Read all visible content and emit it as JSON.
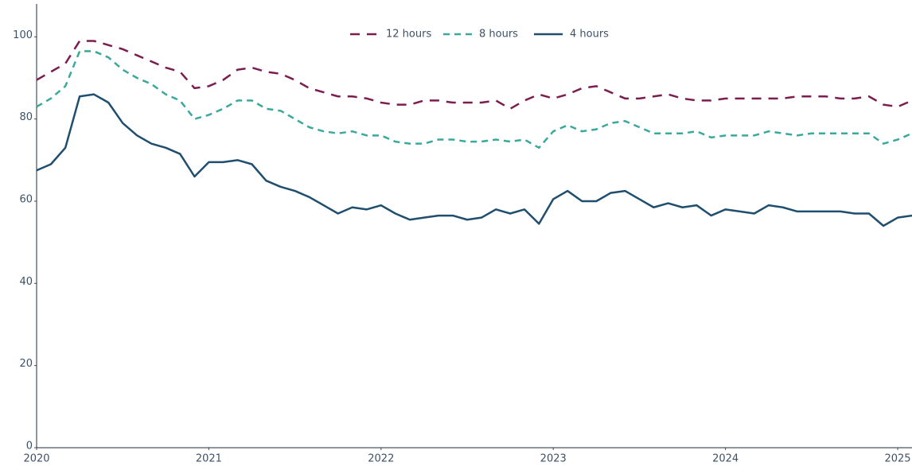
{
  "chart_data": {
    "type": "line",
    "x": [
      2020,
      2020.083,
      2020.167,
      2020.25,
      2020.333,
      2020.417,
      2020.5,
      2020.583,
      2020.667,
      2020.75,
      2020.833,
      2020.917,
      2021,
      2021.083,
      2021.167,
      2021.25,
      2021.333,
      2021.417,
      2021.5,
      2021.583,
      2021.667,
      2021.75,
      2021.833,
      2021.917,
      2022,
      2022.083,
      2022.167,
      2022.25,
      2022.333,
      2022.417,
      2022.5,
      2022.583,
      2022.667,
      2022.75,
      2022.833,
      2022.917,
      2023,
      2023.083,
      2023.167,
      2023.25,
      2023.333,
      2023.417,
      2023.5,
      2023.583,
      2023.667,
      2023.75,
      2023.833,
      2023.917,
      2024,
      2024.083,
      2024.167,
      2024.25,
      2024.333,
      2024.417,
      2024.5,
      2024.583,
      2024.667,
      2024.75,
      2024.833,
      2024.917,
      2025,
      2025.083
    ],
    "series": [
      {
        "name": "12 hours",
        "color": "#7b1e4f",
        "dash": "12,9",
        "values": [
          89.5,
          91.5,
          93.5,
          99,
          99,
          98,
          97,
          95.5,
          94,
          92.5,
          91.5,
          87.5,
          88,
          89.5,
          92,
          92.5,
          91.5,
          91,
          89.5,
          87.5,
          86.5,
          85.5,
          85.5,
          85,
          84,
          83.5,
          83.5,
          84.5,
          84.5,
          84,
          84,
          84,
          84.5,
          82.5,
          84.5,
          86,
          85,
          86,
          87.5,
          88,
          86.5,
          85,
          85,
          85.5,
          86,
          85,
          84.5,
          84.5,
          85,
          85,
          85,
          85,
          85,
          85.5,
          85.5,
          85.5,
          85,
          85,
          85.5,
          83.5,
          83,
          84.5
        ]
      },
      {
        "name": "8 hours",
        "color": "#3aa89b",
        "dash": "8,6",
        "values": [
          83,
          85,
          88,
          96.5,
          96.5,
          95,
          92,
          90,
          88.5,
          86,
          84.5,
          80,
          81,
          82.5,
          84.5,
          84.5,
          82.5,
          82,
          80,
          78,
          77,
          76.5,
          77,
          76,
          76,
          74.5,
          74,
          74,
          75,
          75,
          74.5,
          74.5,
          75,
          74.5,
          75,
          73,
          77,
          78.5,
          77,
          77.5,
          79,
          79.5,
          78,
          76.5,
          76.5,
          76.5,
          77,
          75.5,
          76,
          76,
          76,
          77,
          76.5,
          76,
          76.5,
          76.5,
          76.5,
          76.5,
          76.5,
          74,
          75,
          76.5
        ]
      },
      {
        "name": "4 hours",
        "color": "#1f4e6e",
        "dash": "none",
        "values": [
          67.5,
          69,
          73,
          85.5,
          86,
          84,
          79,
          76,
          74,
          73,
          71.5,
          66,
          69.5,
          69.5,
          70,
          69,
          65,
          63.5,
          62.5,
          61,
          59,
          57,
          58.5,
          58,
          59,
          57,
          55.5,
          56,
          56.5,
          56.5,
          55.5,
          56,
          58,
          57,
          58,
          54.5,
          60.5,
          62.5,
          60,
          60,
          62,
          62.5,
          60.5,
          58.5,
          59.5,
          58.5,
          59,
          56.5,
          58,
          57.5,
          57,
          59,
          58.5,
          57.5,
          57.5,
          57.5,
          57.5,
          57,
          57,
          54,
          56,
          56.5
        ]
      }
    ],
    "xlim": [
      2020,
      2025.083
    ],
    "xticks": [
      2020,
      2021,
      2022,
      2023,
      2024,
      2025
    ],
    "ylim": [
      0,
      108
    ],
    "yticks": [
      0,
      20,
      40,
      60,
      80,
      100
    ],
    "grid": false,
    "legend": "top"
  }
}
